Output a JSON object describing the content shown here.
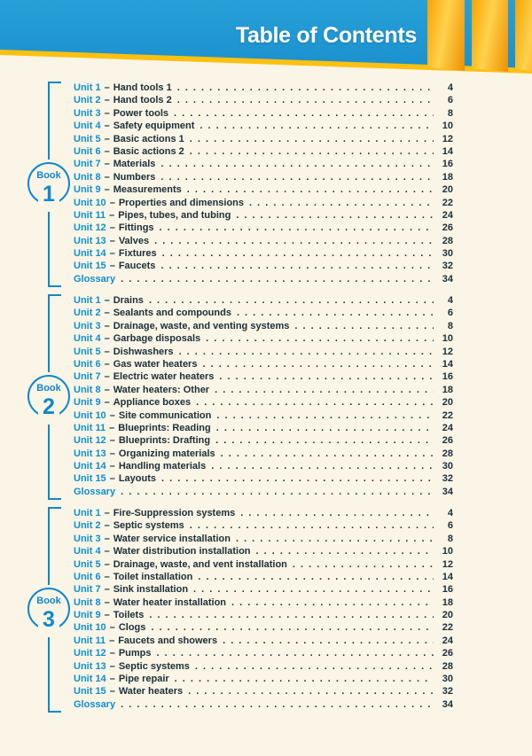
{
  "header": {
    "title": "Table of Contents"
  },
  "colors": {
    "banner_blue": "#1e96d2",
    "accent_gold": "#fdc010",
    "accent_orange": "#f59400",
    "background_cream": "#faf5e6",
    "unit_blue": "#0f8fd0",
    "text_dark": "#1b2e39",
    "bracket_blue": "#1187cc"
  },
  "toc": {
    "separator": "–",
    "books": [
      {
        "badge_word": "Book",
        "badge_number": "1",
        "entries": [
          {
            "label": "Unit 1",
            "title": "Hand tools 1",
            "page": "4"
          },
          {
            "label": "Unit 2",
            "title": "Hand tools 2",
            "page": "6"
          },
          {
            "label": "Unit 3",
            "title": "Power tools",
            "page": "8"
          },
          {
            "label": "Unit 4",
            "title": "Safety equipment",
            "page": "10"
          },
          {
            "label": "Unit 5",
            "title": "Basic actions 1",
            "page": "12"
          },
          {
            "label": "Unit 6",
            "title": "Basic actions 2",
            "page": "14"
          },
          {
            "label": "Unit 7",
            "title": "Materials",
            "page": "16"
          },
          {
            "label": "Unit 8",
            "title": "Numbers",
            "page": "18"
          },
          {
            "label": "Unit 9",
            "title": "Measurements",
            "page": "20"
          },
          {
            "label": "Unit 10",
            "title": "Properties and dimensions",
            "page": "22"
          },
          {
            "label": "Unit 11",
            "title": "Pipes, tubes, and tubing",
            "page": "24"
          },
          {
            "label": "Unit 12",
            "title": "Fittings",
            "page": "26"
          },
          {
            "label": "Unit 13",
            "title": "Valves",
            "page": "28"
          },
          {
            "label": "Unit 14",
            "title": "Fixtures",
            "page": "30"
          },
          {
            "label": "Unit 15",
            "title": "Faucets",
            "page": "32"
          },
          {
            "label": "Glossary",
            "title": "",
            "page": "34"
          }
        ]
      },
      {
        "badge_word": "Book",
        "badge_number": "2",
        "entries": [
          {
            "label": "Unit 1",
            "title": "Drains",
            "page": "4"
          },
          {
            "label": "Unit 2",
            "title": "Sealants and compounds",
            "page": "6"
          },
          {
            "label": "Unit 3",
            "title": "Drainage, waste, and venting systems",
            "page": "8"
          },
          {
            "label": "Unit 4",
            "title": "Garbage disposals",
            "page": "10"
          },
          {
            "label": "Unit 5",
            "title": "Dishwashers",
            "page": "12"
          },
          {
            "label": "Unit 6",
            "title": "Gas water heaters",
            "page": "14"
          },
          {
            "label": "Unit 7",
            "title": "Electric water heaters",
            "page": "16"
          },
          {
            "label": "Unit 8",
            "title": "Water heaters: Other",
            "page": "18"
          },
          {
            "label": "Unit 9",
            "title": "Appliance boxes",
            "page": "20"
          },
          {
            "label": "Unit 10",
            "title": "Site communication",
            "page": "22"
          },
          {
            "label": "Unit 11",
            "title": "Blueprints: Reading",
            "page": "24"
          },
          {
            "label": "Unit 12",
            "title": "Blueprints: Drafting",
            "page": "26"
          },
          {
            "label": "Unit 13",
            "title": "Organizing materials",
            "page": "28"
          },
          {
            "label": "Unit 14",
            "title": "Handling materials",
            "page": "30"
          },
          {
            "label": "Unit 15",
            "title": "Layouts",
            "page": "32"
          },
          {
            "label": "Glossary",
            "title": "",
            "page": "34"
          }
        ]
      },
      {
        "badge_word": "Book",
        "badge_number": "3",
        "entries": [
          {
            "label": "Unit 1",
            "title": "Fire-Suppression systems",
            "page": "4"
          },
          {
            "label": "Unit 2",
            "title": "Septic systems",
            "page": "6"
          },
          {
            "label": "Unit 3",
            "title": "Water service installation",
            "page": "8"
          },
          {
            "label": "Unit 4",
            "title": "Water distribution installation",
            "page": "10"
          },
          {
            "label": "Unit 5",
            "title": "Drainage, waste, and vent installation",
            "page": "12"
          },
          {
            "label": "Unit 6",
            "title": "Toilet installation",
            "page": "14"
          },
          {
            "label": "Unit 7",
            "title": "Sink installation",
            "page": "16"
          },
          {
            "label": "Unit 8",
            "title": "Water heater installation",
            "page": "18"
          },
          {
            "label": "Unit 9",
            "title": "Toilets",
            "page": "20"
          },
          {
            "label": "Unit 10",
            "title": "Clogs",
            "page": "22"
          },
          {
            "label": "Unit 11",
            "title": "Faucets and showers",
            "page": "24"
          },
          {
            "label": "Unit 12",
            "title": "Pumps",
            "page": "26"
          },
          {
            "label": "Unit 13",
            "title": "Septic systems",
            "page": "28"
          },
          {
            "label": "Unit 14",
            "title": "Pipe repair",
            "page": "30"
          },
          {
            "label": "Unit 15",
            "title": "Water heaters",
            "page": "32"
          },
          {
            "label": "Glossary",
            "title": "",
            "page": "34"
          }
        ]
      }
    ]
  }
}
